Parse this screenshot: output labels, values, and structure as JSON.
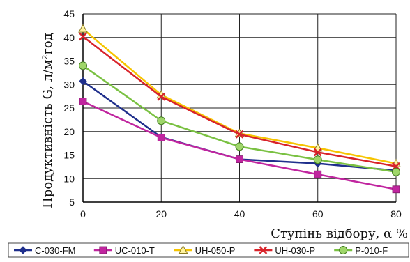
{
  "chart_data": {
    "type": "line",
    "xlabel": "Ступінь відбору, α %",
    "ylabel": "Продуктивність G, л/м²год",
    "x": [
      0,
      20,
      40,
      60,
      80
    ],
    "xlim": [
      0,
      80
    ],
    "ylim": [
      5,
      45
    ],
    "xticks": [
      "0",
      "20",
      "40",
      "60",
      "80"
    ],
    "yticks": [
      "5",
      "10",
      "15",
      "20",
      "25",
      "30",
      "35",
      "40",
      "45"
    ],
    "grid": true,
    "legend_position": "bottom",
    "series": [
      {
        "name": "C-030-FM",
        "values": [
          30.7,
          18.8,
          14.1,
          13.2,
          11.7
        ],
        "color": "#1f2f8c",
        "marker": "diamond"
      },
      {
        "name": "UC-010-T",
        "values": [
          26.4,
          18.7,
          14.1,
          10.9,
          7.7
        ],
        "color": "#c0259f",
        "marker": "square"
      },
      {
        "name": "UH-050-P",
        "values": [
          41.8,
          27.8,
          19.6,
          16.5,
          13.2
        ],
        "color": "#f6c400",
        "marker": "triangle"
      },
      {
        "name": "UH-030-P",
        "values": [
          40.2,
          27.4,
          19.4,
          15.6,
          12.6
        ],
        "color": "#d8232a",
        "marker": "x"
      },
      {
        "name": "P-010-F",
        "values": [
          34.0,
          22.3,
          16.8,
          14.0,
          11.4
        ],
        "color": "#7ac142",
        "marker": "circle"
      }
    ]
  }
}
